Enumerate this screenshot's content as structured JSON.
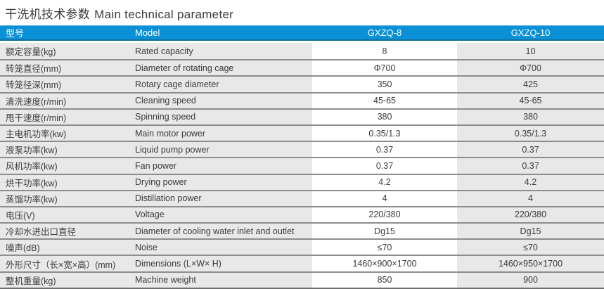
{
  "page": {
    "title_cn": "干洗机技术参数",
    "title_en": "Main technical parameter"
  },
  "table": {
    "header": {
      "param_cn": "型号",
      "param_en": "Model",
      "model_1": "GXZQ-8",
      "model_2": "GXZQ-10"
    },
    "colors": {
      "header_bg": "#0a90d6",
      "label_col_bg": "#e8e8e8",
      "gxzq8_col_bg": "#ffffff",
      "gxzq10_col_bg": "#e8e8e8",
      "row_separator": "#8d8d8d",
      "header_text": "#ffffff",
      "body_text": "#3b3b3b"
    },
    "rows": [
      {
        "cn": "额定容量(kg)",
        "en": "Rated capacity",
        "v8": "8",
        "v10": "10"
      },
      {
        "cn": "转笼直径(mm)",
        "en": "Diameter of rotating cage",
        "v8": "Φ700",
        "v10": "Φ700"
      },
      {
        "cn": "转笼径深(mm)",
        "en": "Rotary cage diameter",
        "v8": "350",
        "v10": "425"
      },
      {
        "cn": "清洗速度(r/min)",
        "en": "Cleaning speed",
        "v8": "45-65",
        "v10": "45-65"
      },
      {
        "cn": "甩干速度(r/min)",
        "en": "Spinning speed",
        "v8": "380",
        "v10": "380"
      },
      {
        "cn": "主电机功率(kw)",
        "en": "Main motor power",
        "v8": "0.35/1.3",
        "v10": "0.35/1.3"
      },
      {
        "cn": "液泵功率(kw)",
        "en": "Liquid pump power",
        "v8": "0.37",
        "v10": "0.37"
      },
      {
        "cn": "风机功率(kw)",
        "en": "Fan power",
        "v8": "0.37",
        "v10": "0.37"
      },
      {
        "cn": "烘干功率(kw)",
        "en": "Drying power",
        "v8": "4.2",
        "v10": "4.2"
      },
      {
        "cn": "蒸馏功率(kw)",
        "en": "Distillation power",
        "v8": "4",
        "v10": "4"
      },
      {
        "cn": "电压(V)",
        "en": "Voltage",
        "v8": "220/380",
        "v10": "220/380"
      },
      {
        "cn": "冷却水进出口直径",
        "en": "Diameter of cooling water inlet and outlet",
        "v8": "Dg15",
        "v10": "Dg15"
      },
      {
        "cn": "噪声(dB)",
        "en": "Noise",
        "v8": "≤70",
        "v10": "≤70"
      },
      {
        "cn": "外形尺寸（长×宽×高）(mm)",
        "en": "Dimensions (L×W× H)",
        "v8": "1460×900×1700",
        "v10": "1460×950×1700"
      },
      {
        "cn": "整机重量(kg)",
        "en": "Machine weight",
        "v8": "850",
        "v10": "900"
      }
    ]
  }
}
